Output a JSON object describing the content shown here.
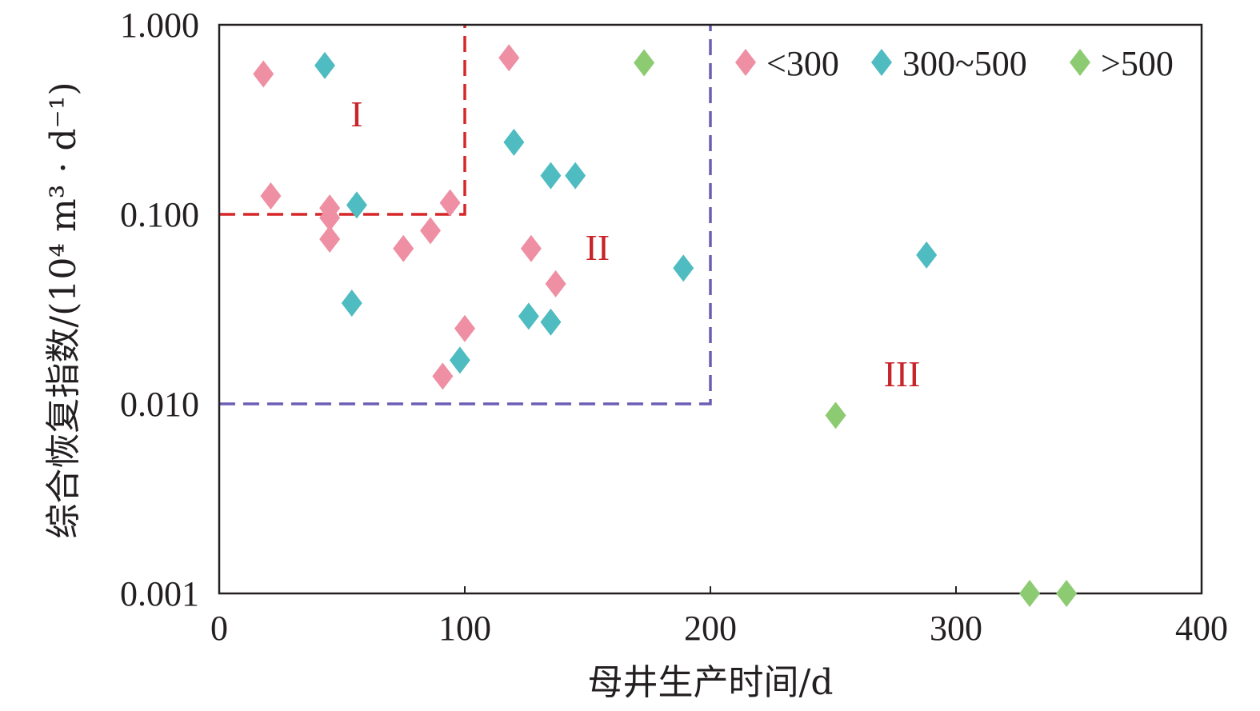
{
  "chart_data": {
    "type": "scatter",
    "xlabel": "母井生产时间/d",
    "ylabel": "综合恢复指数/(10⁴ m³ · d⁻¹)",
    "x_range": [
      0,
      400
    ],
    "x_ticks": [
      0,
      100,
      200,
      300,
      400
    ],
    "x_tick_labels": [
      "0",
      "100",
      "200",
      "300",
      "400"
    ],
    "y_scale": "log",
    "y_range": [
      0.001,
      1
    ],
    "y_ticks": [
      0.001,
      0.01,
      0.1,
      1
    ],
    "y_tick_labels": [
      "0.001",
      "0.010",
      "0.100",
      "1.000"
    ],
    "grid": false,
    "legend_position": "top-right",
    "marker": "diamond",
    "series": [
      {
        "name": "<300",
        "color": "#ee8fa3",
        "points": [
          {
            "x": 18,
            "y": 0.55
          },
          {
            "x": 118,
            "y": 0.67
          },
          {
            "x": 21,
            "y": 0.125
          },
          {
            "x": 45,
            "y": 0.108
          },
          {
            "x": 45,
            "y": 0.096
          },
          {
            "x": 45,
            "y": 0.074
          },
          {
            "x": 75,
            "y": 0.066
          },
          {
            "x": 86,
            "y": 0.082
          },
          {
            "x": 94,
            "y": 0.115
          },
          {
            "x": 127,
            "y": 0.066
          },
          {
            "x": 137,
            "y": 0.043
          },
          {
            "x": 100,
            "y": 0.025
          },
          {
            "x": 91,
            "y": 0.014
          }
        ]
      },
      {
        "name": "300~500",
        "color": "#4fbcc1",
        "points": [
          {
            "x": 43,
            "y": 0.61
          },
          {
            "x": 120,
            "y": 0.24
          },
          {
            "x": 135,
            "y": 0.16
          },
          {
            "x": 145,
            "y": 0.16
          },
          {
            "x": 56,
            "y": 0.112
          },
          {
            "x": 189,
            "y": 0.052
          },
          {
            "x": 288,
            "y": 0.061
          },
          {
            "x": 54,
            "y": 0.034
          },
          {
            "x": 126,
            "y": 0.029
          },
          {
            "x": 135,
            "y": 0.027
          },
          {
            "x": 98,
            "y": 0.017
          }
        ]
      },
      {
        "name": ">500",
        "color": "#8dcb73",
        "points": [
          {
            "x": 173,
            "y": 0.63
          },
          {
            "x": 251,
            "y": 0.0087
          },
          {
            "x": 330,
            "y": 0.001
          },
          {
            "x": 345,
            "y": 0.001
          }
        ]
      }
    ],
    "zones": [
      {
        "label": "I",
        "color": "#d62728",
        "x_max": 100,
        "y_min": 0.1,
        "label_x": 56,
        "label_y": 0.34
      },
      {
        "label": "II",
        "color": "#6b5fb5",
        "x_max": 200,
        "y_min": 0.01,
        "label_x": 154,
        "label_y": 0.067
      },
      {
        "label": "III",
        "color": null,
        "label_x": 278,
        "label_y": 0.0145
      }
    ],
    "zone_label_color": "#c8242b"
  }
}
